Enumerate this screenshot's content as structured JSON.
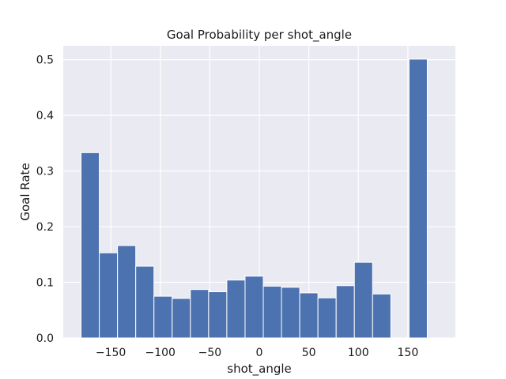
{
  "chart_data": {
    "type": "bar",
    "title": "Goal Probability per shot_angle",
    "xlabel": "shot_angle",
    "ylabel": "Goal Rate",
    "xlim": [
      -198,
      198
    ],
    "ylim": [
      0,
      0.525
    ],
    "xticks": [
      -150,
      -100,
      -50,
      0,
      50,
      100,
      150
    ],
    "xtick_labels": [
      "−150",
      "−100",
      "−50",
      "0",
      "50",
      "100",
      "150"
    ],
    "yticks": [
      0.0,
      0.1,
      0.2,
      0.3,
      0.4,
      0.5
    ],
    "ytick_labels": [
      "0.0",
      "0.1",
      "0.2",
      "0.3",
      "0.4",
      "0.5"
    ],
    "grid": true,
    "bin_width": 18.4,
    "bins": [
      {
        "x0": -180.0,
        "value": 0.333
      },
      {
        "x0": -161.6,
        "value": 0.153
      },
      {
        "x0": -143.2,
        "value": 0.166
      },
      {
        "x0": -124.8,
        "value": 0.129
      },
      {
        "x0": -106.4,
        "value": 0.075
      },
      {
        "x0": -88.0,
        "value": 0.071
      },
      {
        "x0": -69.6,
        "value": 0.087
      },
      {
        "x0": -51.2,
        "value": 0.083
      },
      {
        "x0": -32.8,
        "value": 0.104
      },
      {
        "x0": -14.4,
        "value": 0.111
      },
      {
        "x0": 4.0,
        "value": 0.093
      },
      {
        "x0": 22.4,
        "value": 0.091
      },
      {
        "x0": 40.8,
        "value": 0.081
      },
      {
        "x0": 59.2,
        "value": 0.072
      },
      {
        "x0": 77.6,
        "value": 0.094
      },
      {
        "x0": 96.0,
        "value": 0.136
      },
      {
        "x0": 114.4,
        "value": 0.079
      },
      {
        "x0": 151.2,
        "value": 0.501
      }
    ],
    "colors": {
      "bar": "#4c72b0",
      "background": "#eaeaf2",
      "grid": "#ffffff"
    }
  }
}
